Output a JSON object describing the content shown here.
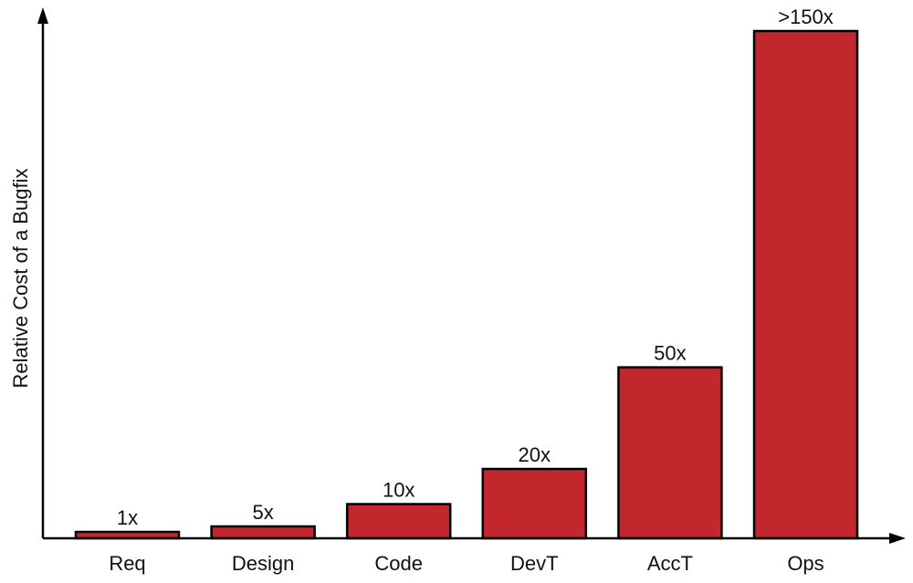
{
  "chart_data": {
    "type": "bar",
    "categories": [
      "Req",
      "Design",
      "Code",
      "DevT",
      "AccT",
      "Ops"
    ],
    "values": [
      1,
      5,
      10,
      20,
      50,
      150
    ],
    "value_labels": [
      "1x",
      "5x",
      "10x",
      "20x",
      "50x",
      ">150x"
    ],
    "title": "",
    "xlabel": "",
    "ylabel": "Relative Cost of a Bugfix",
    "ylim": [
      0,
      150
    ],
    "y_scale": "nonlinear (magnitude illustrative)",
    "grid": false,
    "legend": "none",
    "colors": {
      "bar": "#c1272d",
      "outline": "#000000",
      "axis": "#000000"
    }
  }
}
